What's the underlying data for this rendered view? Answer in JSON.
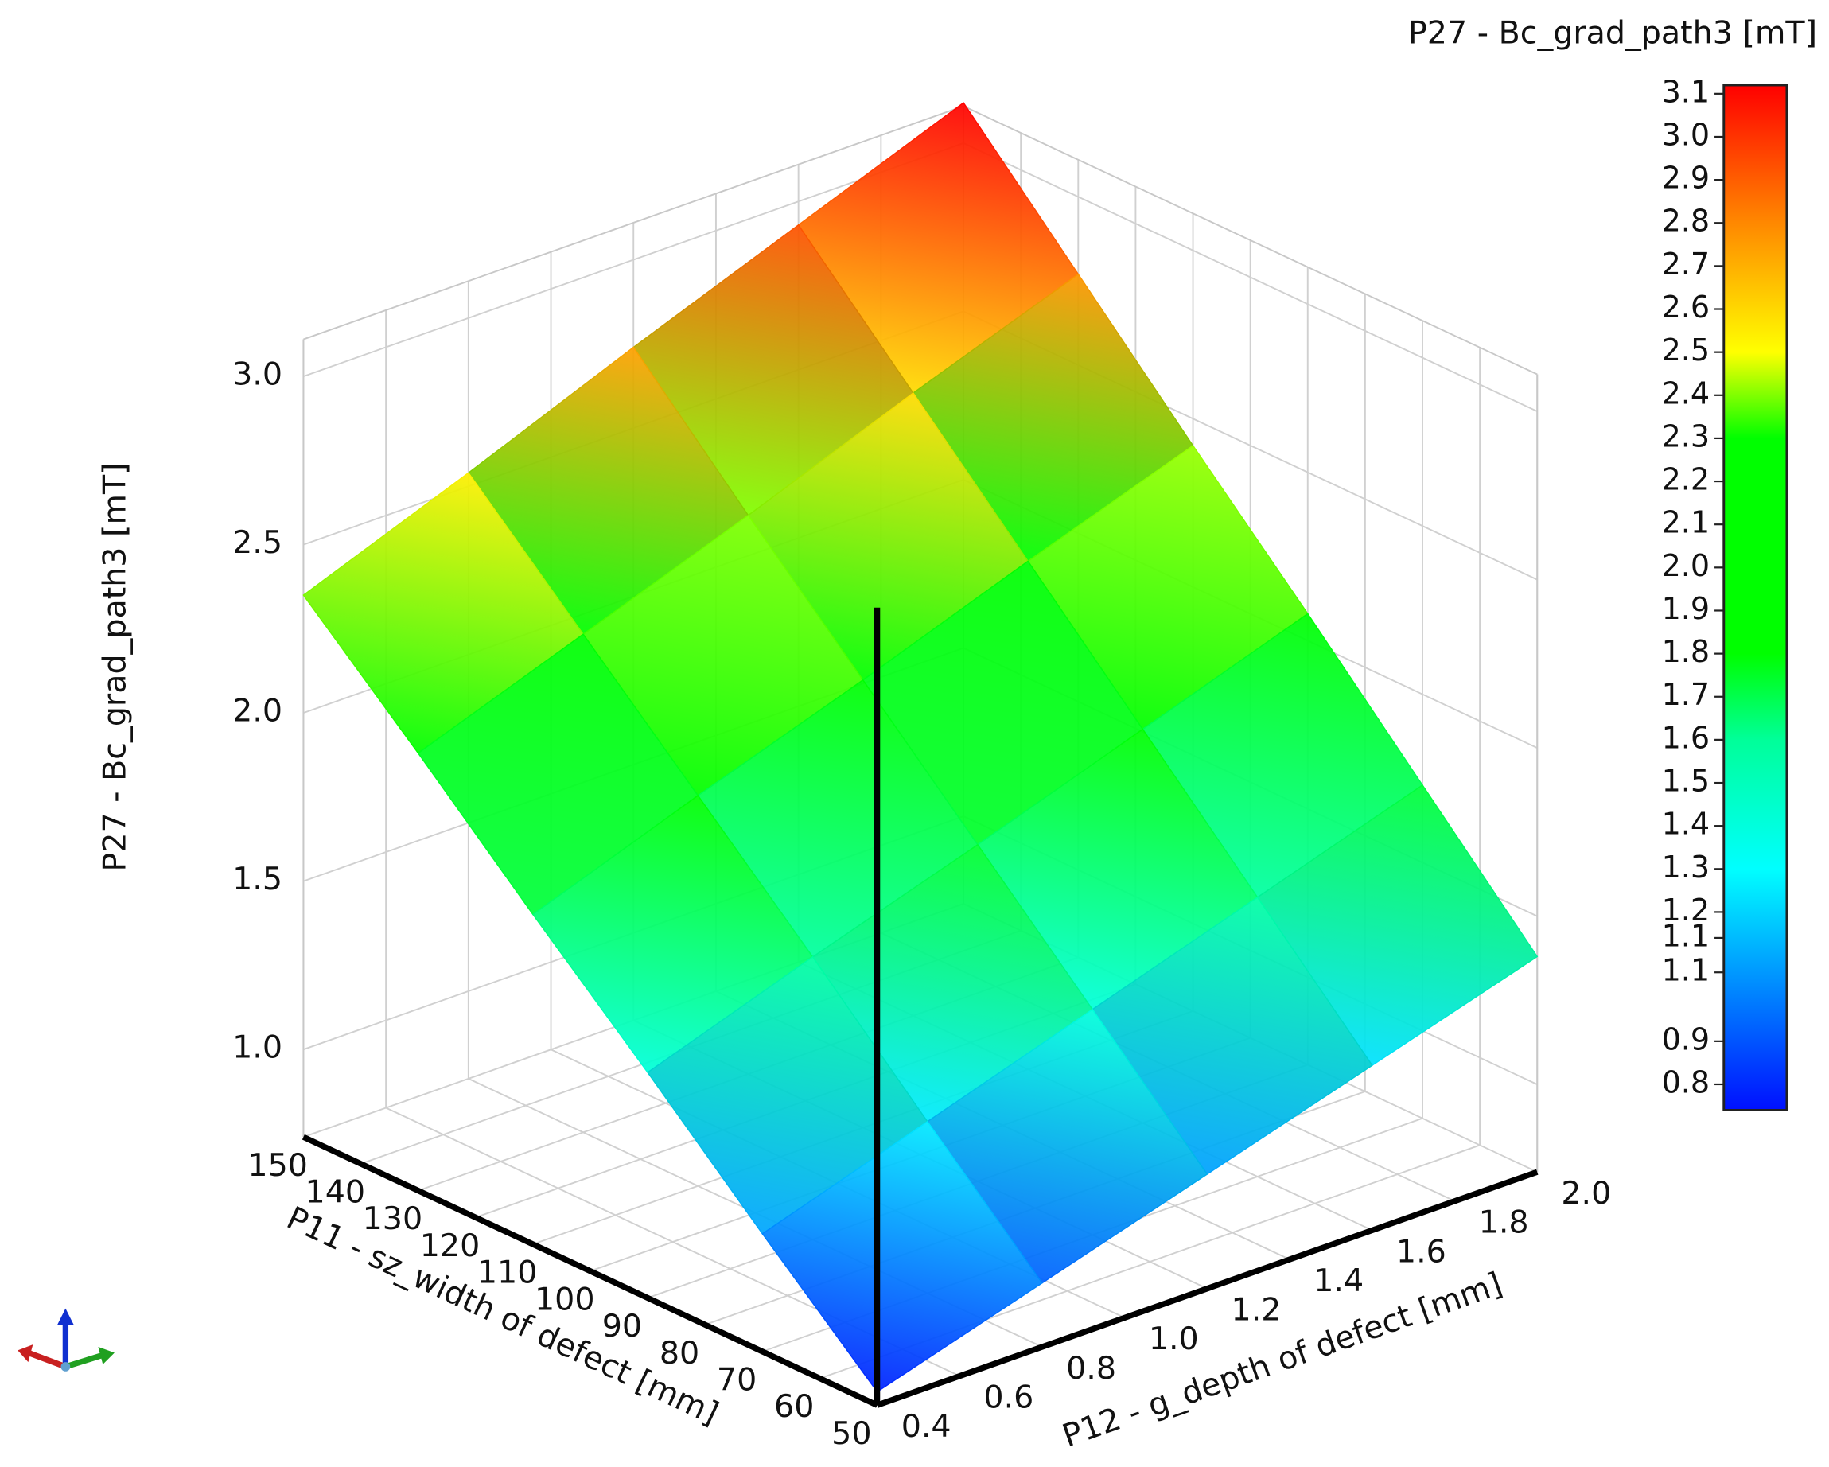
{
  "chart_data": {
    "type": "surface3d",
    "colorbar_title": "P27 - Bc_grad_path3 [mT]",
    "z_label": "P27 - Bc_grad_path3 [mT]",
    "x_label": "P11 - sz_width of defect [mm]",
    "y_label": "P12 - g_depth of defect [mm]",
    "x": [
      50,
      70,
      90,
      110,
      130,
      150
    ],
    "y": [
      0.4,
      0.8,
      1.2,
      1.6,
      2.0
    ],
    "values": [
      [
        0.78,
        0.93,
        1.08,
        1.23,
        1.38
      ],
      [
        1.09,
        1.25,
        1.41,
        1.57,
        1.73
      ],
      [
        1.41,
        1.58,
        1.74,
        1.91,
        2.08
      ],
      [
        1.72,
        1.9,
        2.07,
        2.25,
        2.42
      ],
      [
        2.04,
        2.22,
        2.4,
        2.59,
        2.77
      ],
      [
        2.35,
        2.54,
        2.74,
        2.93,
        3.12
      ]
    ],
    "xlim": [
      50,
      150
    ],
    "ylim": [
      0.4,
      2.0
    ],
    "zlim": [
      0.74,
      3.11
    ],
    "xticks": [
      50,
      60,
      70,
      80,
      90,
      100,
      110,
      120,
      130,
      140,
      150
    ],
    "yticks": [
      0.4,
      0.6,
      0.8,
      {
        "value": 1.0,
        "label": "1.0"
      },
      1.2,
      1.4,
      1.6,
      1.8,
      {
        "value": 2.0,
        "label": "2.0"
      }
    ],
    "zticks": [
      {
        "value": 1.0,
        "label": "1.0"
      },
      1.5,
      {
        "value": 2.0,
        "label": "2.0"
      },
      2.5,
      {
        "value": 3.0,
        "label": "3.0"
      }
    ],
    "colorbar_lim": [
      0.74,
      3.12
    ],
    "colorbar_ticks": [
      0.8,
      0.9,
      {
        "value": 1.06,
        "label": "1.1"
      },
      {
        "value": 1.14,
        "label": "1.1"
      },
      1.2,
      1.3,
      1.4,
      1.5,
      1.6,
      1.7,
      1.8,
      1.9,
      {
        "value": 2.0,
        "label": "2.0"
      },
      2.1,
      2.2,
      2.3,
      2.4,
      2.5,
      2.6,
      2.7,
      2.8,
      2.9,
      {
        "value": 3.0,
        "label": "3.0"
      },
      3.1
    ],
    "colorscale": [
      [
        0.74,
        "#0010ff"
      ],
      [
        1.3,
        "#00ffff"
      ],
      [
        1.6,
        "#00ff99"
      ],
      [
        1.8,
        "#00ff00"
      ],
      [
        2.3,
        "#00ff00"
      ],
      [
        2.5,
        "#ffff00"
      ],
      [
        2.8,
        "#ff8800"
      ],
      [
        3.12,
        "#ff0000"
      ]
    ],
    "grid": true
  }
}
